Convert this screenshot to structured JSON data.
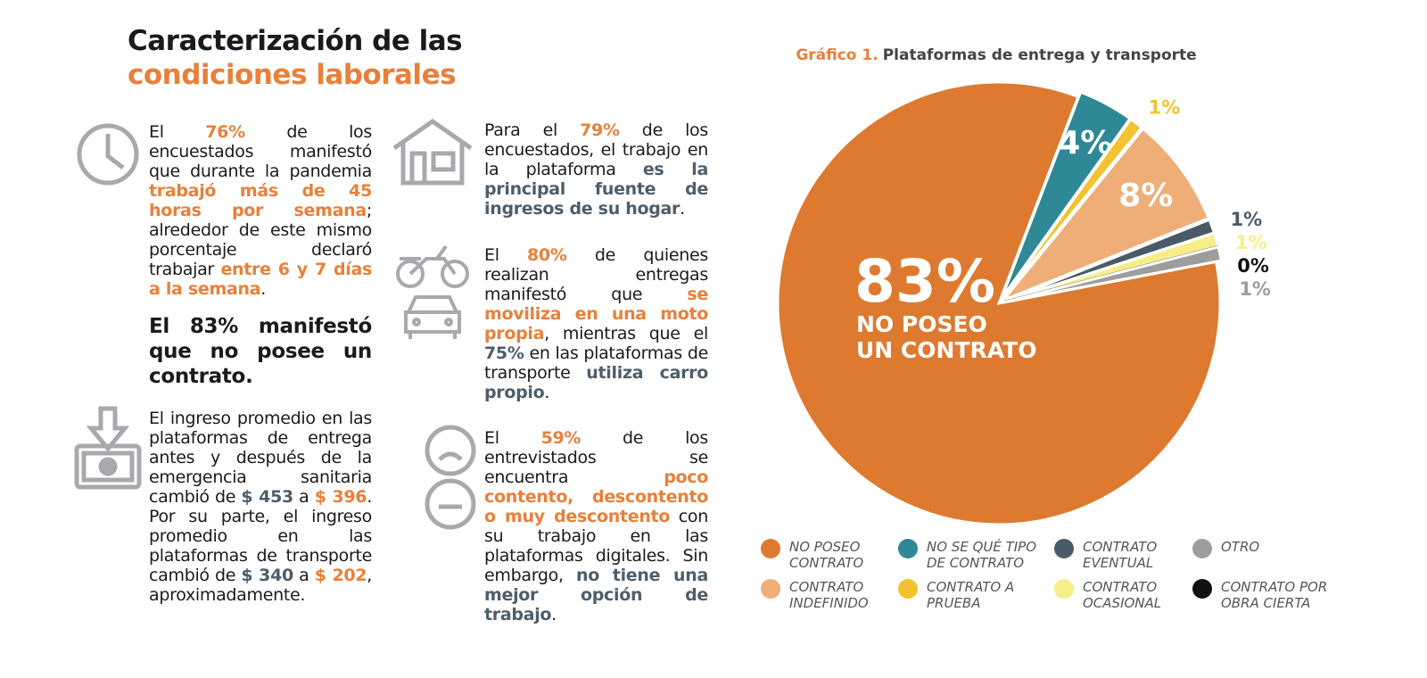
{
  "header": {
    "title_line1": "Caracterización de las",
    "title_line2": "condiciones laborales"
  },
  "blocks": [
    {
      "segments": [
        {
          "text": "El "
        },
        {
          "text": "76%",
          "color": "#e8803a"
        },
        {
          "text": " de los encuestados manifestó que durante la pandemia "
        },
        {
          "text": "trabajó más de 45 horas por semana",
          "color": "#e8803a"
        },
        {
          "text": "; alrededor de este mismo porcentaje declaró trabajar "
        },
        {
          "text": "entre 6 y 7 días a la semana",
          "color": "#e8803a"
        },
        {
          "text": "."
        }
      ]
    },
    {
      "segments": [
        {
          "text": "El 83% manifestó que no posee un contrato.",
          "bold": true
        }
      ]
    },
    {
      "segments": [
        {
          "text": "El ingreso promedio en las plataformas de entrega antes y después de la emergencia sanitaria cambió de "
        },
        {
          "text": "$ 453",
          "color": "#4d5e6b"
        },
        {
          "text": " a "
        },
        {
          "text": "$ 396",
          "color": "#e8803a"
        },
        {
          "text": ". Por su parte, el ingreso promedio en las plataformas de transporte cambió de "
        },
        {
          "text": "$ 340",
          "color": "#4d5e6b"
        },
        {
          "text": " a "
        },
        {
          "text": "$ 202",
          "color": "#e8803a"
        },
        {
          "text": ", aproximadamente."
        }
      ]
    },
    {
      "segments": [
        {
          "text": "Para el "
        },
        {
          "text": "79%",
          "color": "#e8803a"
        },
        {
          "text": " de los encuestados, el trabajo en la plataforma "
        },
        {
          "text": "es la principal fuente de ingresos de su hogar",
          "color": "#4d5e6b"
        },
        {
          "text": "."
        }
      ]
    },
    {
      "segments": [
        {
          "text": "El "
        },
        {
          "text": "80%",
          "color": "#e8803a"
        },
        {
          "text": " de quienes realizan entregas manifestó que "
        },
        {
          "text": "se moviliza en una moto propia",
          "color": "#e8803a"
        },
        {
          "text": ", mientras que el "
        },
        {
          "text": "75%",
          "color": "#4d5e6b"
        },
        {
          "text": " en las plataformas de transporte "
        },
        {
          "text": "utiliza carro propio",
          "color": "#4d5e6b"
        },
        {
          "text": "."
        }
      ]
    },
    {
      "segments": [
        {
          "text": "El "
        },
        {
          "text": "59%",
          "color": "#e8803a"
        },
        {
          "text": " de los entrevistados se encuentra "
        },
        {
          "text": "poco contento, descontento o muy descontento",
          "color": "#e8803a"
        },
        {
          "text": " con su trabajo en las plataformas digitales. Sin embargo, "
        },
        {
          "text": "no tiene una mejor opción de trabajo",
          "color": "#4d5e6b"
        },
        {
          "text": "."
        }
      ]
    }
  ],
  "chart_data": {
    "type": "pie",
    "title_label": "Gráfico 1.",
    "title": "Plataformas de entrega y transporte",
    "categories": [
      "NO SE QUÉ TIPO DE CONTRATO",
      "CONTRATO A PRUEBA",
      "CONTRATO INDEFINIDO",
      "CONTRATO EVENTUAL",
      "CONTRATO OCASIONAL",
      "CONTRATO POR OBRA CIERTA",
      "OTRO",
      "NO POSEO CONTRATO"
    ],
    "values": [
      4,
      1,
      8,
      1,
      1,
      0,
      1,
      83
    ],
    "value_labels": [
      "4%",
      "1%",
      "8%",
      "1%",
      "1%",
      "0%",
      "1%",
      "83%"
    ],
    "colors": [
      "#2e8896",
      "#f2c230",
      "#efae78",
      "#4a5a66",
      "#f7ee8a",
      "#111111",
      "#9d9d9d",
      "#dd7a30"
    ],
    "annotation_lines": [
      "NO POSEO",
      "UN CONTRATO"
    ]
  }
}
